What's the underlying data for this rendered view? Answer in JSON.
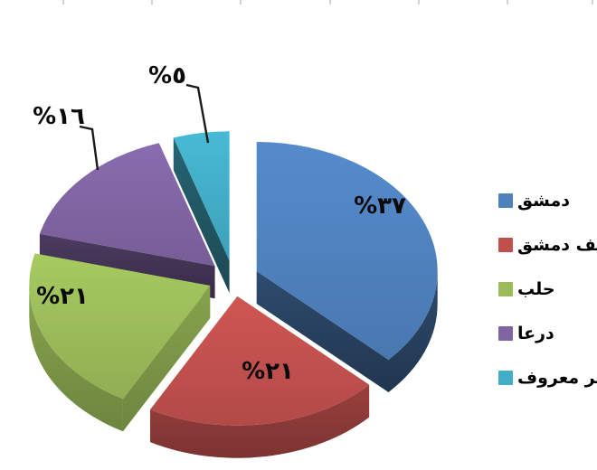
{
  "chart_data": {
    "type": "pie",
    "style": "3d-exploded-pie",
    "title": "",
    "unit": "percent",
    "background": "#ffffff",
    "legend_position": "right",
    "start_angle_deg": 0,
    "clockwise": true,
    "categories": [
      "دمشق",
      "ريف دمشق",
      "حلب",
      "درعا",
      "غير معروف"
    ],
    "values": [
      37,
      21,
      21,
      16,
      5
    ],
    "slices": [
      {
        "key": "damascus",
        "label": "دمشق",
        "value": 37,
        "display": "%٣٧",
        "color": "#4F81BD"
      },
      {
        "key": "rif-dimashq",
        "label": "ريف دمشق",
        "value": 21,
        "display": "%٢١",
        "color": "#C0504D"
      },
      {
        "key": "aleppo",
        "label": "حلب",
        "value": 21,
        "display": "%٢١",
        "color": "#9BBB59"
      },
      {
        "key": "daraa",
        "label": "درعا",
        "value": 16,
        "display": "%١٦",
        "color": "#8064A2"
      },
      {
        "key": "unknown",
        "label": "غير معروف",
        "value": 5,
        "display": "%٥",
        "color": "#43ACC6"
      }
    ],
    "callout_line_color": "#1a1a1a",
    "label_color": "#0a0a0a"
  }
}
